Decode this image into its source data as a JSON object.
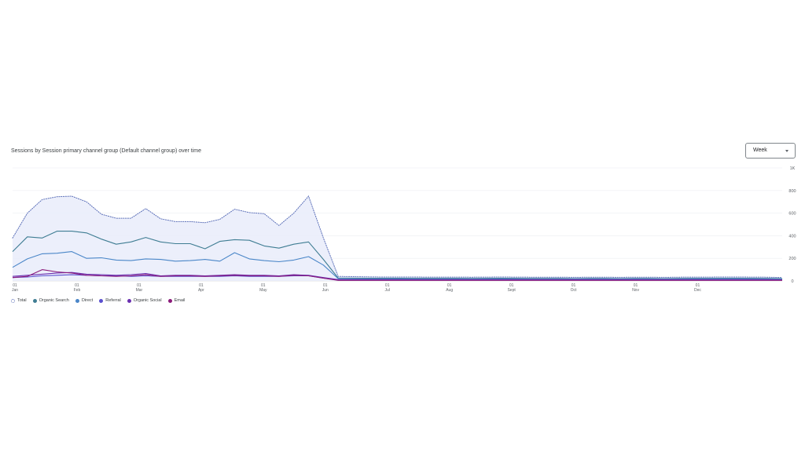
{
  "header": {
    "title": "Sessions by Session primary channel group (Default channel group) over time",
    "period": "Week"
  },
  "chart_data": {
    "type": "line",
    "x_tick_labels": [
      {
        "day": "01",
        "month": "Jan"
      },
      {
        "day": "01",
        "month": "Feb"
      },
      {
        "day": "01",
        "month": "Mar"
      },
      {
        "day": "01",
        "month": "Apr"
      },
      {
        "day": "01",
        "month": "May"
      },
      {
        "day": "01",
        "month": "Jun"
      },
      {
        "day": "01",
        "month": "Jul"
      },
      {
        "day": "01",
        "month": "Aug"
      },
      {
        "day": "01",
        "month": "Sept"
      },
      {
        "day": "01",
        "month": "Oct"
      },
      {
        "day": "01",
        "month": "Nov"
      },
      {
        "day": "01",
        "month": "Dec"
      }
    ],
    "y_tick_labels": [
      "0",
      "200",
      "400",
      "600",
      "800",
      "1K"
    ],
    "ylim": [
      0,
      1000
    ],
    "xlim": [
      0,
      52
    ],
    "grid": true,
    "legend_position": "bottom-left",
    "colors": {
      "Total": "#5b6fb8",
      "Organic Search": "#3f7d93",
      "Direct": "#4a86c8",
      "Referral": "#5a4fcf",
      "Organic Social": "#6a2fb0",
      "Email": "#8b1a7a"
    },
    "series": [
      {
        "name": "Total",
        "style": "dotted-area",
        "values": [
          380,
          600,
          720,
          745,
          750,
          700,
          590,
          555,
          555,
          640,
          550,
          525,
          525,
          515,
          545,
          635,
          605,
          595,
          490,
          600,
          750,
          380,
          40,
          38,
          36,
          35,
          35,
          35,
          34,
          34,
          34,
          33,
          34,
          35,
          34,
          33,
          33,
          33,
          32,
          33,
          33,
          32,
          33,
          33,
          32,
          33,
          34,
          34,
          35,
          35,
          34,
          33,
          30
        ]
      },
      {
        "name": "Organic Search",
        "values": [
          260,
          390,
          380,
          440,
          440,
          425,
          370,
          325,
          345,
          385,
          345,
          330,
          330,
          285,
          350,
          365,
          360,
          310,
          290,
          325,
          345,
          190,
          25,
          25,
          24,
          24,
          24,
          23,
          23,
          23,
          23,
          22,
          23,
          24,
          23,
          22,
          22,
          22,
          21,
          22,
          22,
          21,
          22,
          22,
          21,
          22,
          23,
          23,
          24,
          24,
          23,
          22,
          20
        ]
      },
      {
        "name": "Direct",
        "values": [
          120,
          195,
          240,
          245,
          260,
          200,
          205,
          185,
          180,
          195,
          190,
          175,
          180,
          190,
          175,
          250,
          195,
          180,
          170,
          185,
          215,
          140,
          20,
          19,
          18,
          18,
          18,
          17,
          17,
          17,
          17,
          16,
          17,
          18,
          17,
          16,
          16,
          16,
          16,
          17,
          17,
          16,
          17,
          17,
          16,
          17,
          18,
          18,
          19,
          19,
          18,
          17,
          15
        ]
      },
      {
        "name": "Referral",
        "values": [
          30,
          35,
          45,
          50,
          55,
          50,
          45,
          45,
          40,
          45,
          40,
          40,
          40,
          40,
          40,
          45,
          40,
          40,
          40,
          45,
          45,
          25,
          10,
          10,
          10,
          10,
          10,
          10,
          10,
          10,
          10,
          10,
          10,
          10,
          10,
          10,
          10,
          10,
          10,
          10,
          10,
          10,
          10,
          10,
          10,
          10,
          10,
          10,
          10,
          10,
          10,
          10,
          8
        ]
      },
      {
        "name": "Organic Social",
        "values": [
          40,
          50,
          60,
          70,
          75,
          60,
          55,
          50,
          55,
          65,
          45,
          50,
          50,
          45,
          50,
          55,
          50,
          50,
          45,
          55,
          50,
          30,
          12,
          12,
          12,
          12,
          12,
          12,
          12,
          12,
          12,
          12,
          12,
          12,
          12,
          12,
          12,
          12,
          12,
          12,
          12,
          12,
          12,
          12,
          12,
          12,
          12,
          12,
          12,
          12,
          12,
          12,
          10
        ]
      },
      {
        "name": "Email",
        "values": [
          30,
          40,
          100,
          80,
          70,
          50,
          45,
          40,
          45,
          55,
          40,
          45,
          45,
          40,
          45,
          50,
          45,
          45,
          40,
          50,
          45,
          25,
          5,
          5,
          5,
          5,
          5,
          5,
          5,
          5,
          5,
          5,
          5,
          5,
          5,
          5,
          5,
          5,
          5,
          5,
          5,
          5,
          5,
          5,
          5,
          5,
          5,
          5,
          5,
          5,
          5,
          5,
          5
        ]
      }
    ]
  }
}
